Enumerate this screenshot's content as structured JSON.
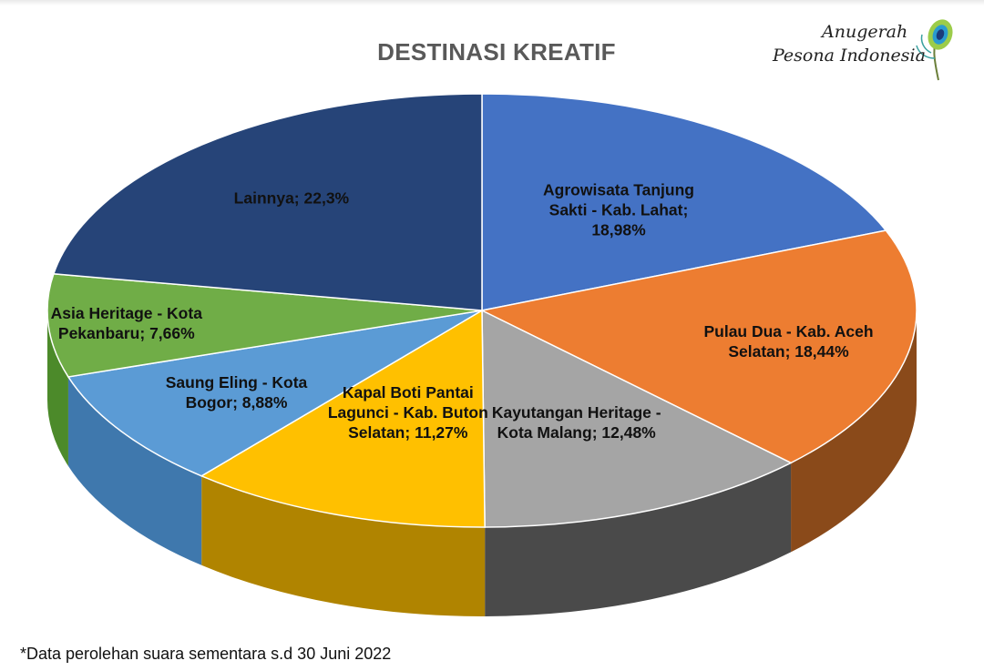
{
  "chart_data": {
    "type": "pie",
    "title": "DESTINASI KREATIF",
    "slices": [
      {
        "label": "Agrowisata Tanjung Sakti - Kab. Lahat; 18,98%",
        "lines": [
          "Agrowisata Tanjung",
          "Sakti - Kab. Lahat;",
          "18,98%"
        ],
        "value": 18.98,
        "color": "#4472c4",
        "side": "#2f528f"
      },
      {
        "label": "Pulau Dua - Kab. Aceh Selatan; 18,44%",
        "lines": [
          "Pulau Dua - Kab. Aceh",
          "Selatan; 18,44%"
        ],
        "value": 18.44,
        "color": "#ed7d31",
        "side": "#8a4a1a"
      },
      {
        "label": "Kayutangan Heritage - Kota Malang; 12,48%",
        "lines": [
          "Kayutangan Heritage -",
          "Kota Malang; 12,48%"
        ],
        "value": 12.48,
        "color": "#a5a5a5",
        "side": "#4a4a4a"
      },
      {
        "label": "Kapal Boti Pantai Lagunci - Kab. Buton Selatan; 11,27%",
        "lines": [
          "Kapal Boti Pantai",
          "Lagunci - Kab. Buton",
          "Selatan; 11,27%"
        ],
        "value": 11.27,
        "color": "#ffc000",
        "side": "#b08400"
      },
      {
        "label": "Saung Eling - Kota Bogor; 8,88%",
        "lines": [
          "Saung Eling - Kota",
          "Bogor; 8,88%"
        ],
        "value": 8.88,
        "color": "#5b9bd5",
        "side": "#3f78ad"
      },
      {
        "label": "Asia Heritage - Kota Pekanbaru; 7,66%",
        "lines": [
          "Asia Heritage - Kota",
          "Pekanbaru; 7,66%"
        ],
        "value": 7.66,
        "color": "#70ad47",
        "side": "#4c8a2a"
      },
      {
        "label": "Lainnya; 22,3%",
        "lines": [
          "Lainnya; 22,3%"
        ],
        "value": 22.3,
        "color": "#264478",
        "side": "#182c50"
      }
    ]
  },
  "logo": {
    "line1": "Anugerah",
    "line2": "Pesona Indonesia"
  },
  "footnote": "*Data perolehan suara sementara s.d 30 Juni 2022"
}
